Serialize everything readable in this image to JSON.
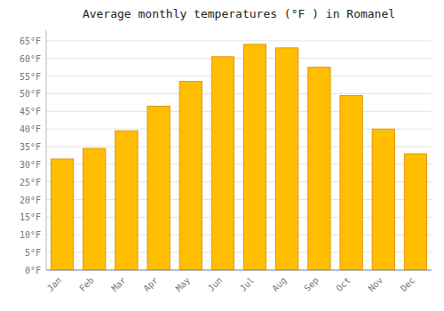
{
  "chart_data": {
    "type": "bar",
    "title": "Average monthly temperatures (°F ) in Romanel",
    "categories": [
      "Jan",
      "Feb",
      "Mar",
      "Apr",
      "May",
      "Jun",
      "Jul",
      "Aug",
      "Sep",
      "Oct",
      "Nov",
      "Dec"
    ],
    "values": [
      31.5,
      34.5,
      39.5,
      46.5,
      53.5,
      60.5,
      64.0,
      63.0,
      57.5,
      49.5,
      40.0,
      33.0
    ],
    "color": "#FFBE00",
    "ylim": [
      0,
      68
    ],
    "yticks": [
      {
        "value": 0,
        "label": "0°F"
      },
      {
        "value": 5,
        "label": "5°F"
      },
      {
        "value": 10,
        "label": "10°F"
      },
      {
        "value": 15,
        "label": "15°F"
      },
      {
        "value": 20,
        "label": "20°F"
      },
      {
        "value": 25,
        "label": "25°F"
      },
      {
        "value": 30,
        "label": "30°F"
      },
      {
        "value": 35,
        "label": "35°F"
      },
      {
        "value": 40,
        "label": "40°F"
      },
      {
        "value": 45,
        "label": "45°F"
      },
      {
        "value": 50,
        "label": "50°F"
      },
      {
        "value": 55,
        "label": "55°F"
      },
      {
        "value": 60,
        "label": "60°F"
      },
      {
        "value": 65,
        "label": "65°F"
      }
    ],
    "grid": true
  }
}
